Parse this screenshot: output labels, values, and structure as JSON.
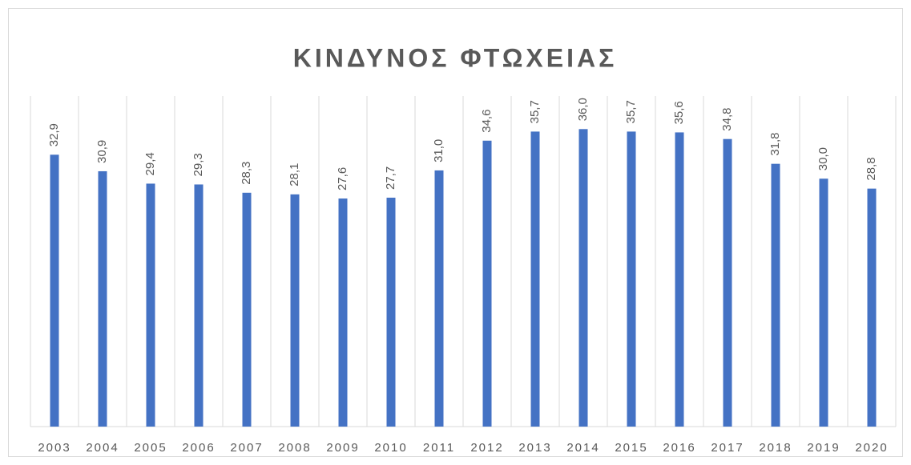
{
  "chart_data": {
    "type": "bar",
    "title": "ΚΙΝΔΥΝΟΣ ΦΤΩΧΕΙΑΣ",
    "categories": [
      "2003",
      "2004",
      "2005",
      "2006",
      "2007",
      "2008",
      "2009",
      "2010",
      "2011",
      "2012",
      "2013",
      "2014",
      "2015",
      "2016",
      "2017",
      "2018",
      "2019",
      "2020"
    ],
    "values": [
      32.9,
      30.9,
      29.4,
      29.3,
      28.3,
      28.1,
      27.6,
      27.7,
      31.0,
      34.6,
      35.7,
      36.0,
      35.7,
      35.6,
      34.8,
      31.8,
      30.0,
      28.8
    ],
    "value_labels": [
      "32,9",
      "30,9",
      "29,4",
      "29,3",
      "28,3",
      "28,1",
      "27,6",
      "27,7",
      "31,0",
      "34,6",
      "35,7",
      "36,0",
      "35,7",
      "35,6",
      "34,8",
      "31,8",
      "30,0",
      "28,8"
    ],
    "color": "#4472c4",
    "ylim": [
      0,
      40
    ]
  }
}
